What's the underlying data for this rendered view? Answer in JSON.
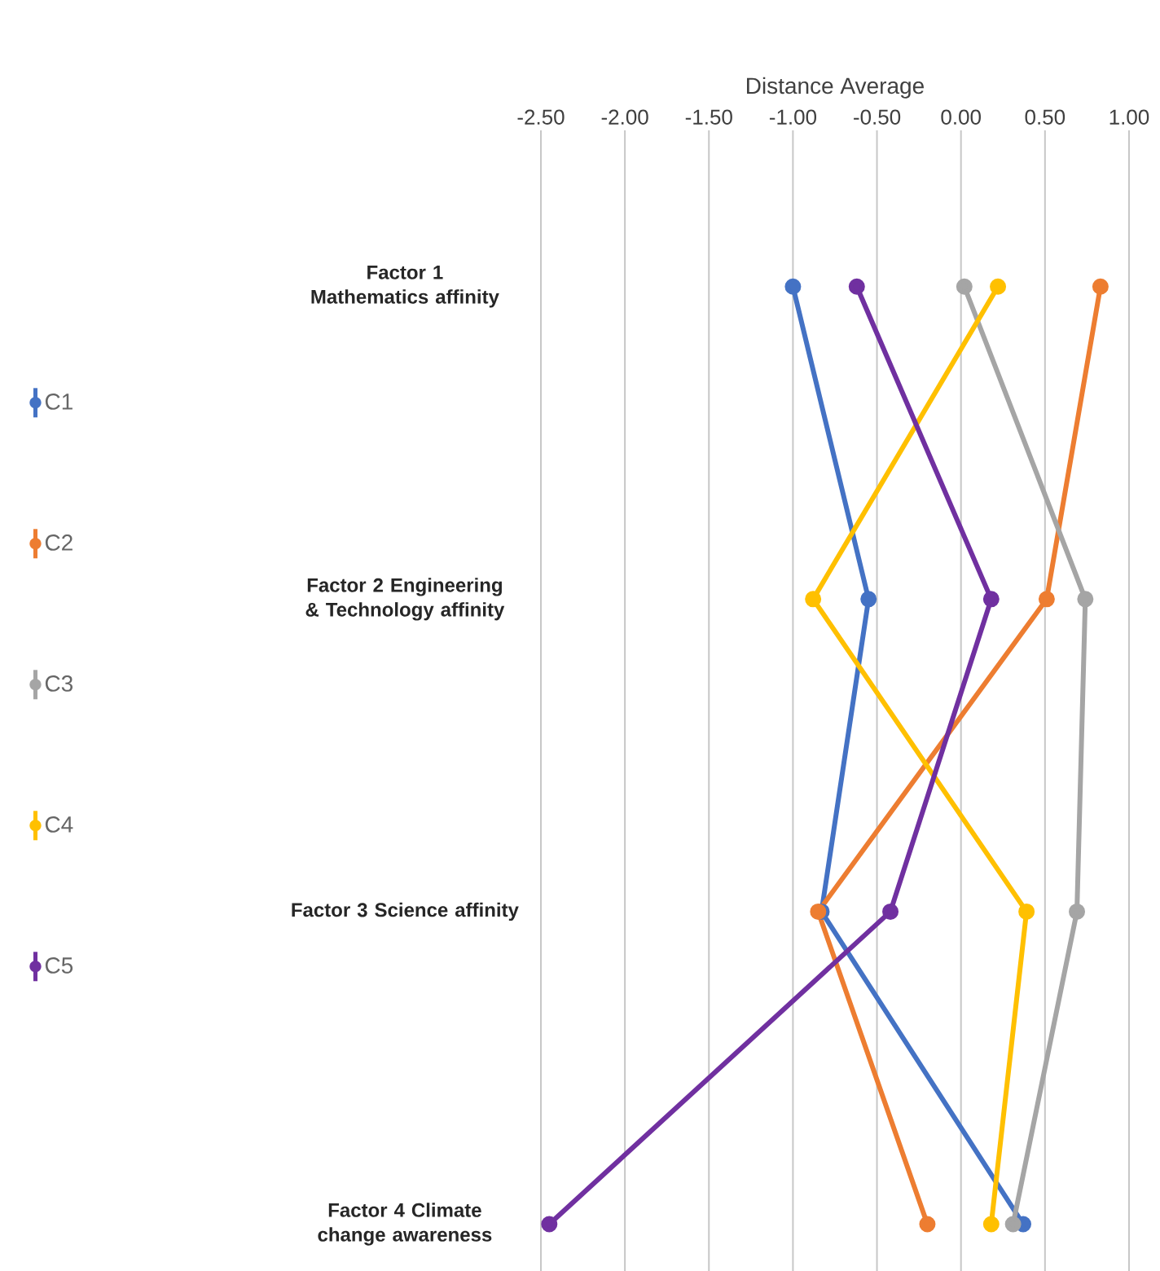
{
  "chart_data": {
    "type": "line",
    "xlabel": "Distance Average",
    "categories": [
      "Factor 1 Mathematics affinity",
      "Factor 2 Engineering & Technology affinity",
      "Factor 3 Science affinity",
      "Factor 4 Climate change awareness"
    ],
    "orientation": "horizontal",
    "series": [
      {
        "name": "C1",
        "color": "#4472c4",
        "values": [
          -1.0,
          -0.55,
          -0.83,
          0.37
        ]
      },
      {
        "name": "C2",
        "color": "#ed7d31",
        "values": [
          0.83,
          0.51,
          -0.85,
          -0.2
        ]
      },
      {
        "name": "C3",
        "color": "#a5a5a5",
        "values": [
          0.02,
          0.74,
          0.69,
          0.31
        ]
      },
      {
        "name": "C4",
        "color": "#ffc000",
        "values": [
          0.22,
          -0.88,
          0.39,
          0.18
        ]
      },
      {
        "name": "C5",
        "color": "#7030a0",
        "values": [
          -0.62,
          0.18,
          -0.42,
          -2.45
        ]
      }
    ],
    "xlim": [
      -2.5,
      1.0
    ],
    "xticks": [
      {
        "value": -2.5,
        "label": "-2.50"
      },
      {
        "value": -2.0,
        "label": "-2.00"
      },
      {
        "value": -1.5,
        "label": "-1.50"
      },
      {
        "value": -1.0,
        "label": "-1.00"
      },
      {
        "value": -0.5,
        "label": "-0.50"
      },
      {
        "value": 0,
        "label": "0.00"
      },
      {
        "value": 0.5,
        "label": "0.50"
      },
      {
        "value": 1.0,
        "label": "1.00"
      }
    ],
    "grid": "x",
    "legend": "left",
    "marker": "circle",
    "line_style": "solid"
  }
}
